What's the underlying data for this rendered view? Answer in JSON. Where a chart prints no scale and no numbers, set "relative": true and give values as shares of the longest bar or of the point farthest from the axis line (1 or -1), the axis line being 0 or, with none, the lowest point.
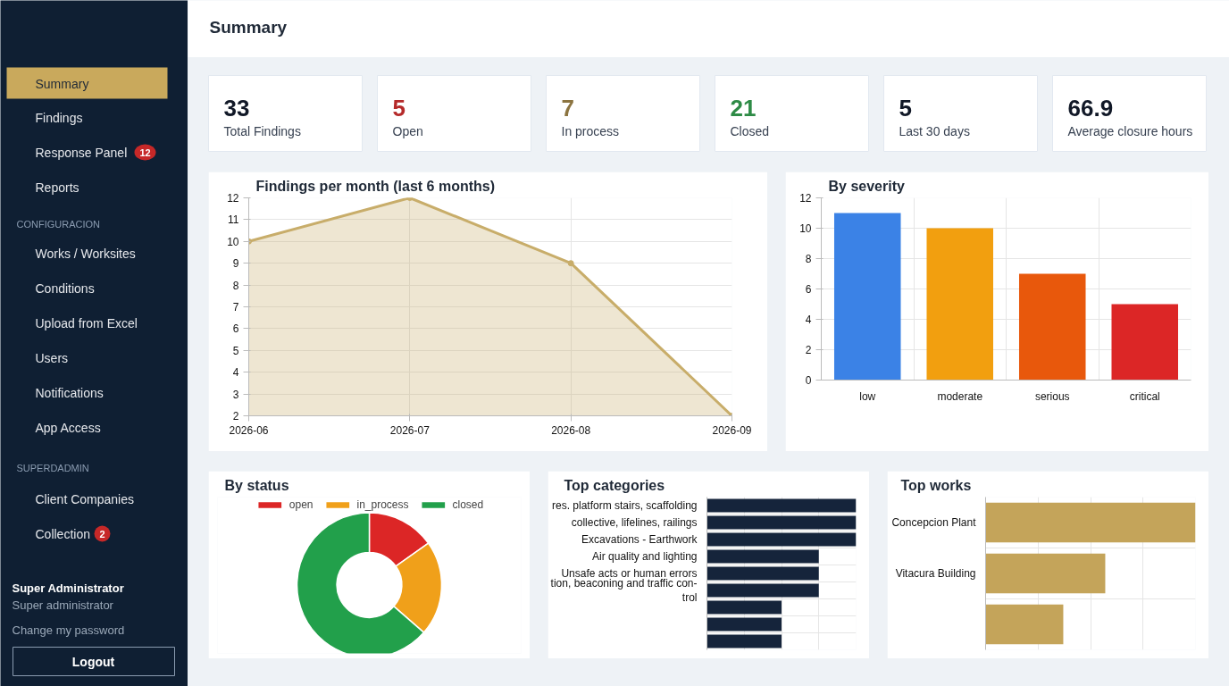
{
  "chart_data": [
    {
      "type": "other",
      "annotations": [
        "Summary",
        "Findings",
        "Response Panel",
        "12",
        "Reports",
        "CONFIGURACION",
        "Works / Worksites",
        "Conditions",
        "Upload from Excel",
        "Users",
        "Notifications",
        "App Access",
        "SUPERDADMIN",
        "Client Companies",
        "Collection",
        "2",
        "Super Administrator",
        "Super administrator",
        "Change my password",
        "Logout"
      ]
    },
    {
      "type": "other",
      "title": "Summary"
    },
    {
      "type": "other",
      "annotations": [
        "33",
        "Total Findings"
      ],
      "color": "#111827"
    },
    {
      "type": "other",
      "annotations": [
        "5",
        "Open"
      ],
      "color": "#b52a2a"
    },
    {
      "type": "other",
      "annotations": [
        "7",
        "In process"
      ],
      "color": "#8c7440"
    },
    {
      "type": "other",
      "annotations": [
        "21",
        "Closed"
      ],
      "color": "#2e8b46"
    },
    {
      "type": "other",
      "annotations": [
        "5",
        "Last 30 days"
      ],
      "color": "#111827"
    },
    {
      "type": "other",
      "annotations": [
        "66.9",
        "Average closure hours"
      ],
      "color": "#111827"
    },
    {
      "type": "area",
      "title": "Findings per month (last 6 months)",
      "categories": [
        "2026-06",
        "2026-07",
        "2026-08",
        "2026-09"
      ],
      "values": [
        10,
        12,
        9,
        2
      ],
      "color": "#c8ad6a",
      "ylim": [
        2,
        12
      ],
      "yticks": [
        2,
        3,
        4,
        5,
        6,
        7,
        8,
        9,
        10,
        11,
        12
      ],
      "grid": true,
      "marker": "circle"
    },
    {
      "type": "bar",
      "title": "By severity",
      "categories": [
        "low",
        "moderate",
        "serious",
        "critical"
      ],
      "values": [
        11,
        10,
        7,
        5
      ],
      "colors": [
        "#3b82e6",
        "#f29f0f",
        "#e8580c",
        "#dc2626"
      ],
      "ylim": [
        0,
        12
      ],
      "yticks": [
        0,
        2,
        4,
        6,
        8,
        10,
        12
      ],
      "grid": true
    },
    {
      "type": "donut",
      "title": "By status",
      "categories": [
        "open",
        "in_process",
        "closed"
      ],
      "values": [
        15.2,
        21.2,
        63.6
      ],
      "colors": [
        "#dc2626",
        "#f0a01a",
        "#22a04b"
      ],
      "legend": "top"
    },
    {
      "type": "bar",
      "orientation": "horizontal",
      "relative": true,
      "title": "Top categories",
      "categories": [
        "res. platform stairs, scaffolding",
        "collective, lifelines, railings",
        "Excavations - Earthwork",
        "Air quality and lighting",
        "Unsafe acts or human errors",
        "tion, beaconing and traffic con-\ntrol",
        null,
        null,
        null
      ],
      "values": [
        1,
        1,
        1,
        0.75,
        0.75,
        0.75,
        0.5,
        0.5,
        0.5
      ],
      "color": "#15243b",
      "grid": true
    },
    {
      "type": "bar",
      "orientation": "horizontal",
      "relative": true,
      "title": "Top works",
      "categories": [
        "Concepcion Plant",
        "Vitacura Building",
        null
      ],
      "values": [
        1,
        0.57,
        0.37
      ],
      "color": "#c4a45a",
      "grid": true
    }
  ]
}
